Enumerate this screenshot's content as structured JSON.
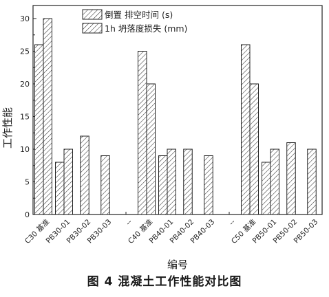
{
  "chart_data": {
    "type": "bar",
    "xlabel": "编号",
    "ylabel": "工作性能",
    "ylim": [
      0,
      32
    ],
    "yticks": [
      0,
      5,
      10,
      15,
      20,
      25,
      30
    ],
    "categories": [
      "C30 基准",
      "PB30-01",
      "PB30-02",
      "PB30-03",
      "--",
      "C40 基准",
      "PB40-01",
      "PB40-02",
      "PB40-03",
      "--",
      "C50 基准",
      "PB50-01",
      "PB50-02",
      "PB50-03"
    ],
    "series": [
      {
        "name": "倒置 排空时间 (s)",
        "values": [
          26,
          8,
          12,
          9,
          null,
          25,
          9,
          10,
          9,
          null,
          26,
          8,
          11,
          10
        ]
      },
      {
        "name": "1h 坍落度损失 (mm)",
        "values": [
          30,
          10,
          null,
          null,
          null,
          20,
          10,
          null,
          null,
          null,
          20,
          10,
          null,
          null
        ]
      }
    ],
    "legend_position": "top-right",
    "grid": false
  },
  "caption": "图 4   混凝土工作性能对比图"
}
